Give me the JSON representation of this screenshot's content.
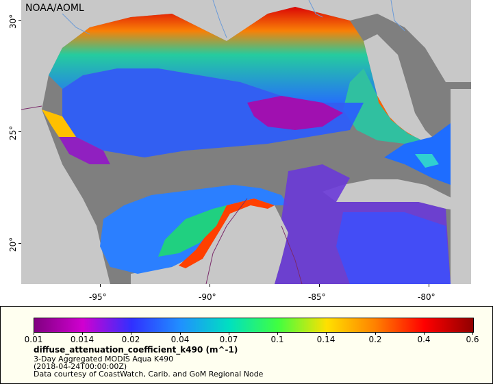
{
  "map": {
    "attribution": "NOAA/AOML",
    "lat_labels": [
      "30°",
      "25°",
      "20°"
    ],
    "lon_labels": [
      "-95°",
      "-90°",
      "-85°",
      "-80°"
    ],
    "colors": {
      "land": "#c8c8c8",
      "no_data": "#7f7f7f",
      "border": "#7a2a6a",
      "river": "#6a9ad8"
    }
  },
  "legend": {
    "colorbar_ticks": [
      "0.01",
      "0.014",
      "0.02",
      "0.04",
      "0.07",
      "0.1",
      "0.14",
      "0.2",
      "0.4",
      "0.6"
    ],
    "colorbar_colors": [
      "#800080",
      "#d000d0",
      "#3030ff",
      "#2090ff",
      "#00e0c0",
      "#40ff40",
      "#ffe000",
      "#ff8000",
      "#ff0000",
      "#900000"
    ],
    "variable": "diffuse_attenuation_coefficient_k490 (m^-1)",
    "product": "3-Day Aggregated MODIS Aqua K490",
    "time": "(2018-04-24T00:00:00Z)",
    "credit": "Data courtesy of CoastWatch, Carib. and GoM Regional Node"
  }
}
